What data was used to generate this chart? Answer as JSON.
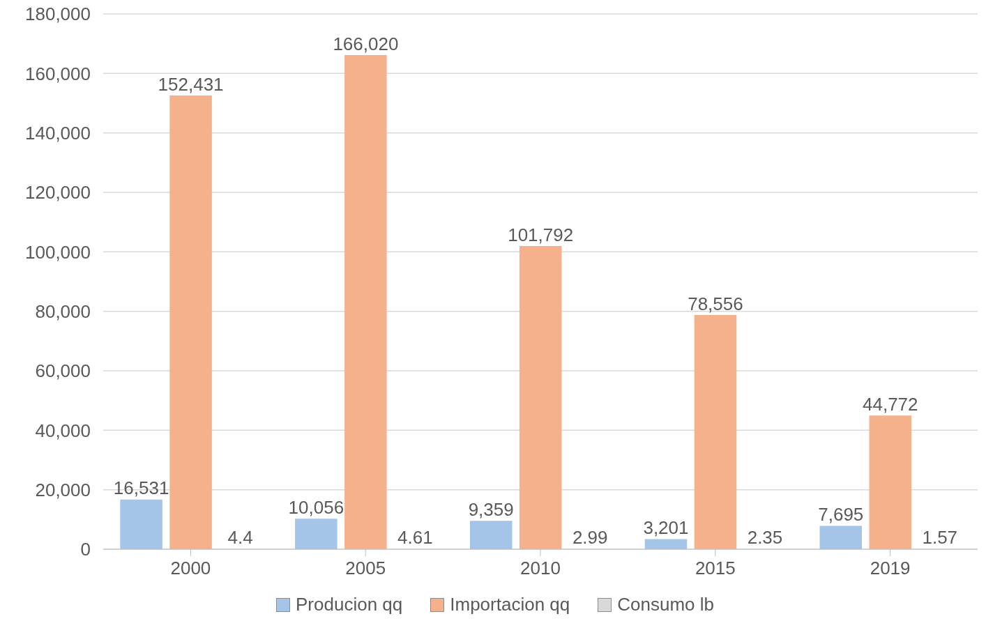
{
  "chart_data": {
    "type": "bar",
    "categories": [
      "2000",
      "2005",
      "2010",
      "2015",
      "2019"
    ],
    "series": [
      {
        "name": "Producion qq",
        "color": "#a4c4e8",
        "values": [
          16531,
          10056,
          9359,
          3201,
          7695
        ],
        "value_labels": [
          "16,531",
          "10,056",
          "9,359",
          "3,201",
          "7,695"
        ]
      },
      {
        "name": "Importacion qq",
        "color": "#f5b08c",
        "values": [
          152431,
          166020,
          101792,
          78556,
          44772
        ],
        "value_labels": [
          "152,431",
          "166,020",
          "101,792",
          "78,556",
          "44,772"
        ]
      },
      {
        "name": "Consumo lb",
        "color": "#d9d9d9",
        "values": [
          4.4,
          4.61,
          2.99,
          2.35,
          1.57
        ]
      }
    ],
    "ylim": [
      0,
      180000
    ],
    "yticks": [
      0,
      {
        "value": 20000,
        "label": "20,000"
      },
      {
        "value": 40000,
        "label": "40,000"
      },
      {
        "value": 60000,
        "label": "60,000"
      },
      {
        "value": 80000,
        "label": "80,000"
      },
      {
        "value": 100000,
        "label": "100,000"
      },
      {
        "value": 120000,
        "label": "120,000"
      },
      {
        "value": 140000,
        "label": "140,000"
      },
      {
        "value": 160000,
        "label": "160,000"
      },
      {
        "value": 180000,
        "label": "180,000"
      }
    ],
    "grid": "y",
    "legend": "bottom",
    "data_labels": true
  }
}
